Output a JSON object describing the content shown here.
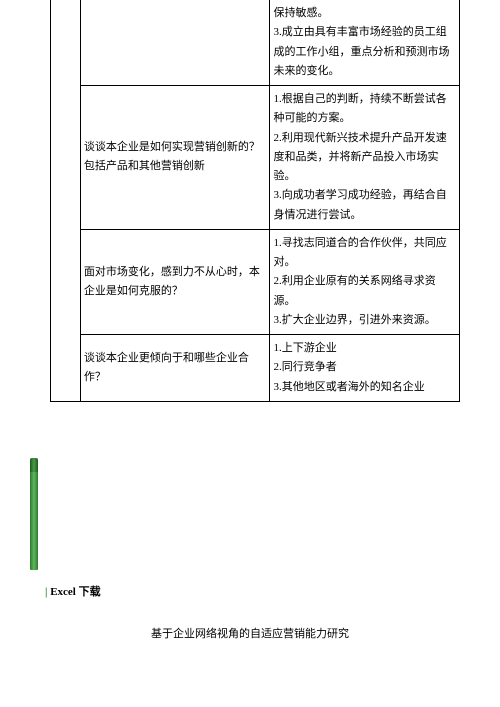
{
  "table": {
    "rows": [
      {
        "col2": "",
        "col3": "保持敏感。\n3.成立由具有丰富市场经验的员工组成的工作小组，重点分析和预测市场未来的变化。"
      },
      {
        "col2": "谈谈本企业是如何实现营销创新的？包括产品和其他营销创新",
        "col3": "1.根据自己的判断，持续不断尝试各种可能的方案。\n2.利用现代新兴技术提升产品开发速度和品类，并将新产品投入市场实验。\n3.向成功者学习成功经验，再结合自身情况进行尝试。"
      },
      {
        "col2": "面对市场变化，感到力不从心时，本企业是如何克服的？",
        "col3": "1.寻找志同道合的合作伙伴，共同应对。\n2.利用企业原有的关系网络寻求资源。\n3.扩大企业边界，引进外来资源。"
      },
      {
        "col2": "谈谈本企业更倾向于和哪些企业合作？",
        "col3": "1.上下游企业\n2.同行竞争者\n3.其他地区或者海外的知名企业"
      }
    ]
  },
  "excel_label": "Excel 下载",
  "footer_title": "基于企业网络视角的自适应营销能力研究",
  "colors": {
    "text": "#000000",
    "border": "#000000",
    "green_accent": "#2d7a2d",
    "background": "#ffffff"
  },
  "typography": {
    "body_fontsize": 11,
    "line_height": 1.75
  }
}
